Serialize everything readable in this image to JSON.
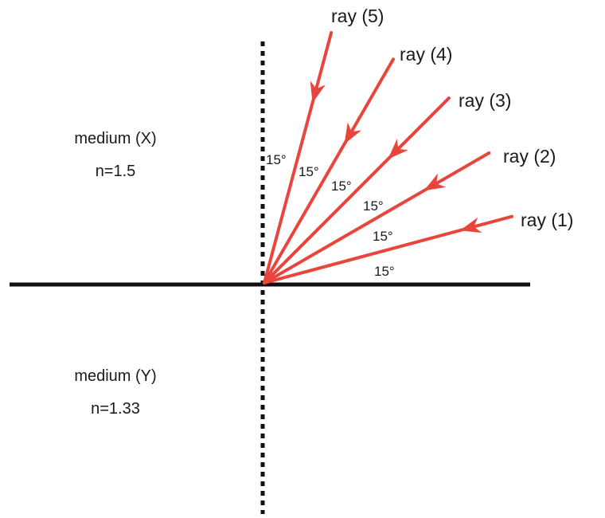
{
  "colors": {
    "ray": "#e8453c",
    "line": "#111111",
    "text": "#1a1a1a"
  },
  "media": [
    {
      "name": "medium (X)",
      "index": "n=1.5"
    },
    {
      "name": "medium (Y)",
      "index": "n=1.33"
    }
  ],
  "rays": [
    {
      "label": "ray (1)",
      "angle_from_surface_deg": 15
    },
    {
      "label": "ray (2)",
      "angle_from_surface_deg": 30
    },
    {
      "label": "ray (3)",
      "angle_from_surface_deg": 45
    },
    {
      "label": "ray (4)",
      "angle_from_surface_deg": 60
    },
    {
      "label": "ray (5)",
      "angle_from_surface_deg": 75
    }
  ],
  "angle_labels": [
    "15°",
    "15°",
    "15°",
    "15°",
    "15°",
    "15°"
  ]
}
